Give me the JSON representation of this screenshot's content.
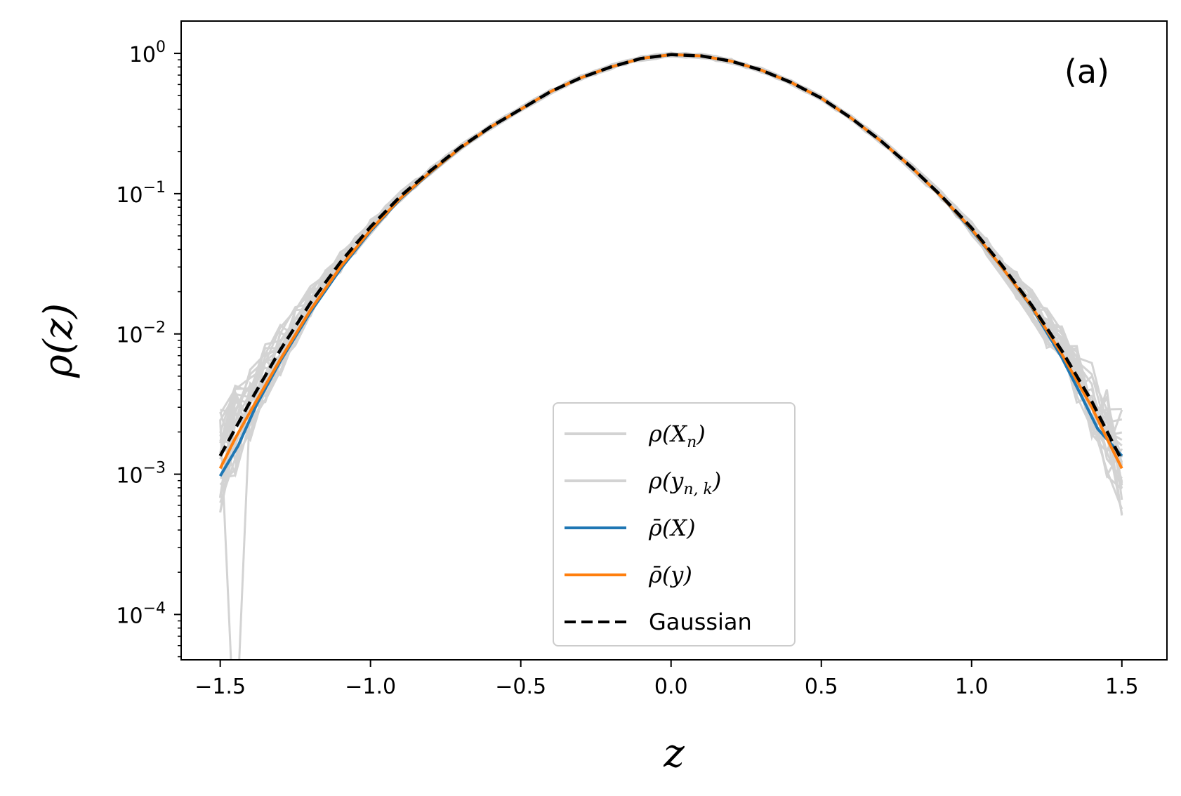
{
  "chart_data": {
    "type": "line",
    "panel_label": "(a)",
    "xlabel": "z",
    "ylabel": "ρ(z)",
    "xlim": [
      -1.63,
      1.65
    ],
    "ylim": [
      4.75e-05,
      1.7
    ],
    "yscale": "log",
    "grid": false,
    "legend_position": "bottom-center",
    "x_ticks": [
      -1.5,
      -1.0,
      -0.5,
      0.0,
      0.5,
      1.0,
      1.5
    ],
    "x_tick_labels": [
      "−1.5",
      "−1.0",
      "−0.5",
      "0.0",
      "0.5",
      "1.0",
      "1.5"
    ],
    "y_ticks": [
      1,
      0.1,
      0.01,
      0.001,
      0.0001
    ],
    "y_tick_labels": [
      {
        "base": "10",
        "exp": "0"
      },
      {
        "base": "10",
        "exp": "−1"
      },
      {
        "base": "10",
        "exp": "−2"
      },
      {
        "base": "10",
        "exp": "−3"
      },
      {
        "base": "10",
        "exp": "−4"
      }
    ],
    "legend": [
      {
        "label": "ρ(X",
        "sub": "n",
        "tail": ")",
        "color": "#d3d3d3",
        "dash": "solid"
      },
      {
        "label": "ρ(y",
        "sub": "n, k",
        "tail": ")",
        "color": "#d3d3d3",
        "dash": "solid"
      },
      {
        "label": "ρ̄(X)",
        "sub": "",
        "tail": "",
        "color": "#1f77b4",
        "dash": "solid"
      },
      {
        "label": "ρ̄(y)",
        "sub": "",
        "tail": "",
        "color": "#ff7f0e",
        "dash": "solid"
      },
      {
        "label": "Gaussian",
        "sub": "",
        "tail": "",
        "color": "#000000",
        "dash": "dashed"
      }
    ],
    "series": [
      {
        "name": "Gaussian",
        "color": "#000000",
        "style": "dashed",
        "x": [
          -1.5,
          -1.4,
          -1.3,
          -1.2,
          -1.1,
          -1.0,
          -0.9,
          -0.8,
          -0.7,
          -0.6,
          -0.5,
          -0.4,
          -0.3,
          -0.2,
          -0.1,
          0.0,
          0.1,
          0.2,
          0.3,
          0.4,
          0.5,
          0.6,
          0.7,
          0.8,
          0.9,
          1.0,
          1.1,
          1.2,
          1.3,
          1.4,
          1.5
        ],
        "y": [
          0.00135,
          0.0033,
          0.0077,
          0.0166,
          0.0325,
          0.058,
          0.096,
          0.146,
          0.215,
          0.3,
          0.4,
          0.535,
          0.67,
          0.8,
          0.92,
          0.98,
          0.96,
          0.88,
          0.76,
          0.62,
          0.48,
          0.345,
          0.236,
          0.154,
          0.096,
          0.057,
          0.031,
          0.016,
          0.0076,
          0.0033,
          0.00125
        ]
      },
      {
        "name": "ρ̄(X)",
        "color": "#1f77b4",
        "style": "solid",
        "x": [
          -1.5,
          -1.44,
          -1.38,
          -1.3,
          -1.2,
          -1.1,
          -1.0,
          -0.9,
          -0.8,
          -0.7,
          -0.6,
          -0.5,
          -0.4,
          -0.3,
          -0.2,
          -0.1,
          0.0,
          0.1,
          0.2,
          0.3,
          0.4,
          0.5,
          0.6,
          0.7,
          0.8,
          0.9,
          1.0,
          1.1,
          1.2,
          1.3,
          1.36,
          1.42,
          1.5
        ],
        "y": [
          0.00097,
          0.0016,
          0.0031,
          0.0064,
          0.0143,
          0.029,
          0.054,
          0.092,
          0.142,
          0.212,
          0.298,
          0.4,
          0.535,
          0.67,
          0.8,
          0.92,
          0.98,
          0.96,
          0.88,
          0.76,
          0.62,
          0.48,
          0.345,
          0.236,
          0.154,
          0.095,
          0.055,
          0.03,
          0.0155,
          0.0068,
          0.0038,
          0.0021,
          0.00135
        ]
      },
      {
        "name": "ρ̄(y)",
        "color": "#ff7f0e",
        "style": "solid",
        "x": [
          -1.5,
          -1.45,
          -1.4,
          -1.3,
          -1.2,
          -1.1,
          -1.0,
          -0.9,
          -0.8,
          -0.7,
          -0.6,
          -0.5,
          -0.4,
          -0.3,
          -0.2,
          -0.1,
          0.0,
          0.1,
          0.2,
          0.3,
          0.4,
          0.5,
          0.6,
          0.7,
          0.8,
          0.9,
          1.0,
          1.1,
          1.2,
          1.3,
          1.4,
          1.45,
          1.5
        ],
        "y": [
          0.0011,
          0.0018,
          0.0028,
          0.0066,
          0.0148,
          0.03,
          0.055,
          0.093,
          0.143,
          0.213,
          0.299,
          0.4,
          0.535,
          0.67,
          0.8,
          0.92,
          0.98,
          0.96,
          0.88,
          0.76,
          0.62,
          0.48,
          0.345,
          0.236,
          0.154,
          0.095,
          0.056,
          0.03,
          0.0157,
          0.0072,
          0.003,
          0.0018,
          0.0011
        ]
      }
    ]
  }
}
